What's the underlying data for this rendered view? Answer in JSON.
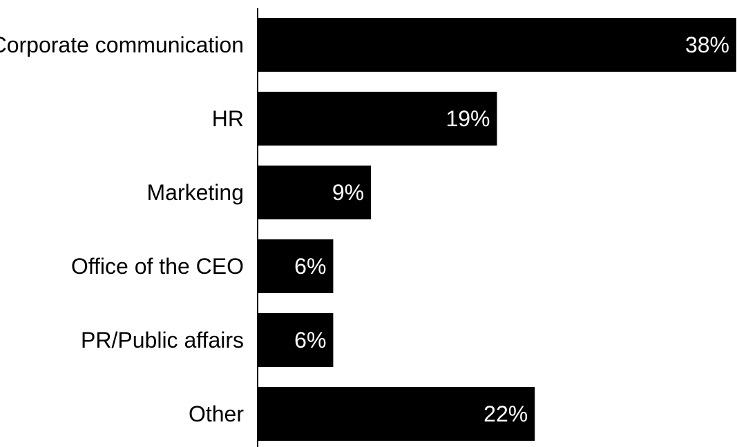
{
  "chart_data": {
    "type": "bar",
    "orientation": "horizontal",
    "categories": [
      "Corporate communication",
      "HR",
      "Marketing",
      "Office of the CEO",
      "PR/Public affairs",
      "Other"
    ],
    "values": [
      38,
      19,
      9,
      6,
      6,
      22
    ],
    "value_labels": [
      "38%",
      "19%",
      "9%",
      "6%",
      "6%",
      "22%"
    ],
    "unit": "%",
    "xlim": [
      0,
      38
    ],
    "grid": false,
    "legend": "none",
    "bar_color": "#000000",
    "label_color": "#ffffff",
    "axis_color": "#000000"
  }
}
